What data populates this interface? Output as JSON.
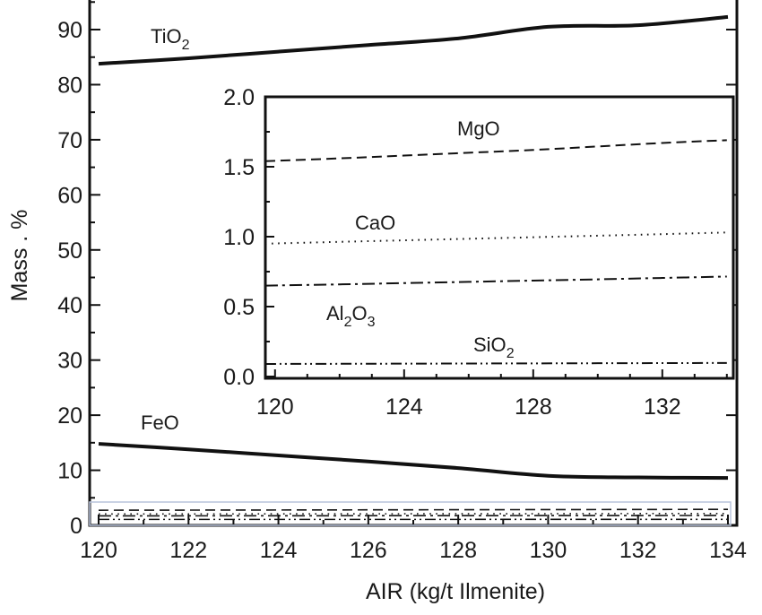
{
  "chart_data": [
    {
      "type": "line",
      "xlabel": "AIR (kg/t Ilmenite)",
      "ylabel": "Mass . %",
      "xlim": [
        120,
        134
      ],
      "ylim": [
        0,
        95
      ],
      "xticks": [
        "120",
        "122",
        "124",
        "126",
        "128",
        "130",
        "132",
        "134"
      ],
      "yticks": [
        "0",
        "10",
        "20",
        "30",
        "40",
        "50",
        "60",
        "70",
        "80",
        "90"
      ],
      "x": [
        120,
        122,
        124,
        126,
        128,
        130,
        132,
        134
      ],
      "series": [
        {
          "name": "TiO2",
          "label_main": "TiO",
          "label_sub": "2",
          "style": "solid",
          "color": "#111111",
          "values": [
            83.8,
            84.8,
            86.0,
            87.2,
            88.4,
            90.5,
            90.8,
            92.3
          ]
        },
        {
          "name": "FeO",
          "label_main": "FeO",
          "label_sub": "",
          "style": "solid",
          "color": "#111111",
          "values": [
            14.8,
            13.8,
            12.7,
            11.6,
            10.4,
            9.0,
            8.7,
            8.6
          ]
        },
        {
          "name": "MgO",
          "style": "dashed",
          "color": "#111111",
          "values": [
            1.55,
            1.57,
            1.59,
            1.61,
            1.63,
            1.65,
            1.67,
            1.69
          ]
        },
        {
          "name": "CaO",
          "style": "dotted",
          "color": "#111111",
          "values": [
            0.95,
            0.96,
            0.97,
            0.98,
            0.99,
            1.0,
            1.02,
            1.03
          ]
        },
        {
          "name": "Al2O3",
          "style": "dashdot",
          "color": "#111111",
          "values": [
            0.65,
            0.66,
            0.67,
            0.68,
            0.69,
            0.7,
            0.71,
            0.72
          ]
        },
        {
          "name": "SiO2",
          "style": "dashdotdot",
          "color": "#111111",
          "values": [
            0.09,
            0.09,
            0.09,
            0.09,
            0.09,
            0.1,
            0.1,
            0.1
          ]
        }
      ],
      "zoom_box": {
        "x": [
          120,
          134
        ],
        "y": [
          0,
          2.0
        ],
        "color": "#b9c4dc"
      }
    },
    {
      "type": "line",
      "inset": true,
      "xlabel": "",
      "ylabel": "",
      "xlim": [
        119.7,
        134.2
      ],
      "ylim": [
        0,
        2.0
      ],
      "xticks": [
        "120",
        "124",
        "128",
        "132"
      ],
      "yticks": [
        "0.0",
        "0.5",
        "1.0",
        "1.5",
        "2.0"
      ],
      "x": [
        119.7,
        122,
        124,
        126,
        128,
        130,
        132,
        134
      ],
      "series": [
        {
          "name": "MgO",
          "label_main": "MgO",
          "label_sub": "",
          "style": "dashed",
          "color": "#111111",
          "values": [
            1.54,
            1.56,
            1.58,
            1.6,
            1.62,
            1.645,
            1.67,
            1.69
          ]
        },
        {
          "name": "CaO",
          "label_main": "CaO",
          "label_sub": "",
          "style": "dotted",
          "color": "#111111",
          "values": [
            0.95,
            0.963,
            0.974,
            0.985,
            0.996,
            1.007,
            1.018,
            1.03
          ]
        },
        {
          "name": "Al2O3",
          "label_main": "Al",
          "label_sub": "2",
          "label_main2": "O",
          "label_sub2": "3",
          "style": "dashdot",
          "color": "#111111",
          "values": [
            0.65,
            0.659,
            0.668,
            0.677,
            0.686,
            0.695,
            0.705,
            0.715
          ]
        },
        {
          "name": "SiO2",
          "label_main": "SiO",
          "label_sub": "2",
          "style": "dashdotdot",
          "color": "#111111",
          "values": [
            0.09,
            0.091,
            0.092,
            0.093,
            0.094,
            0.095,
            0.096,
            0.097
          ]
        }
      ]
    }
  ]
}
